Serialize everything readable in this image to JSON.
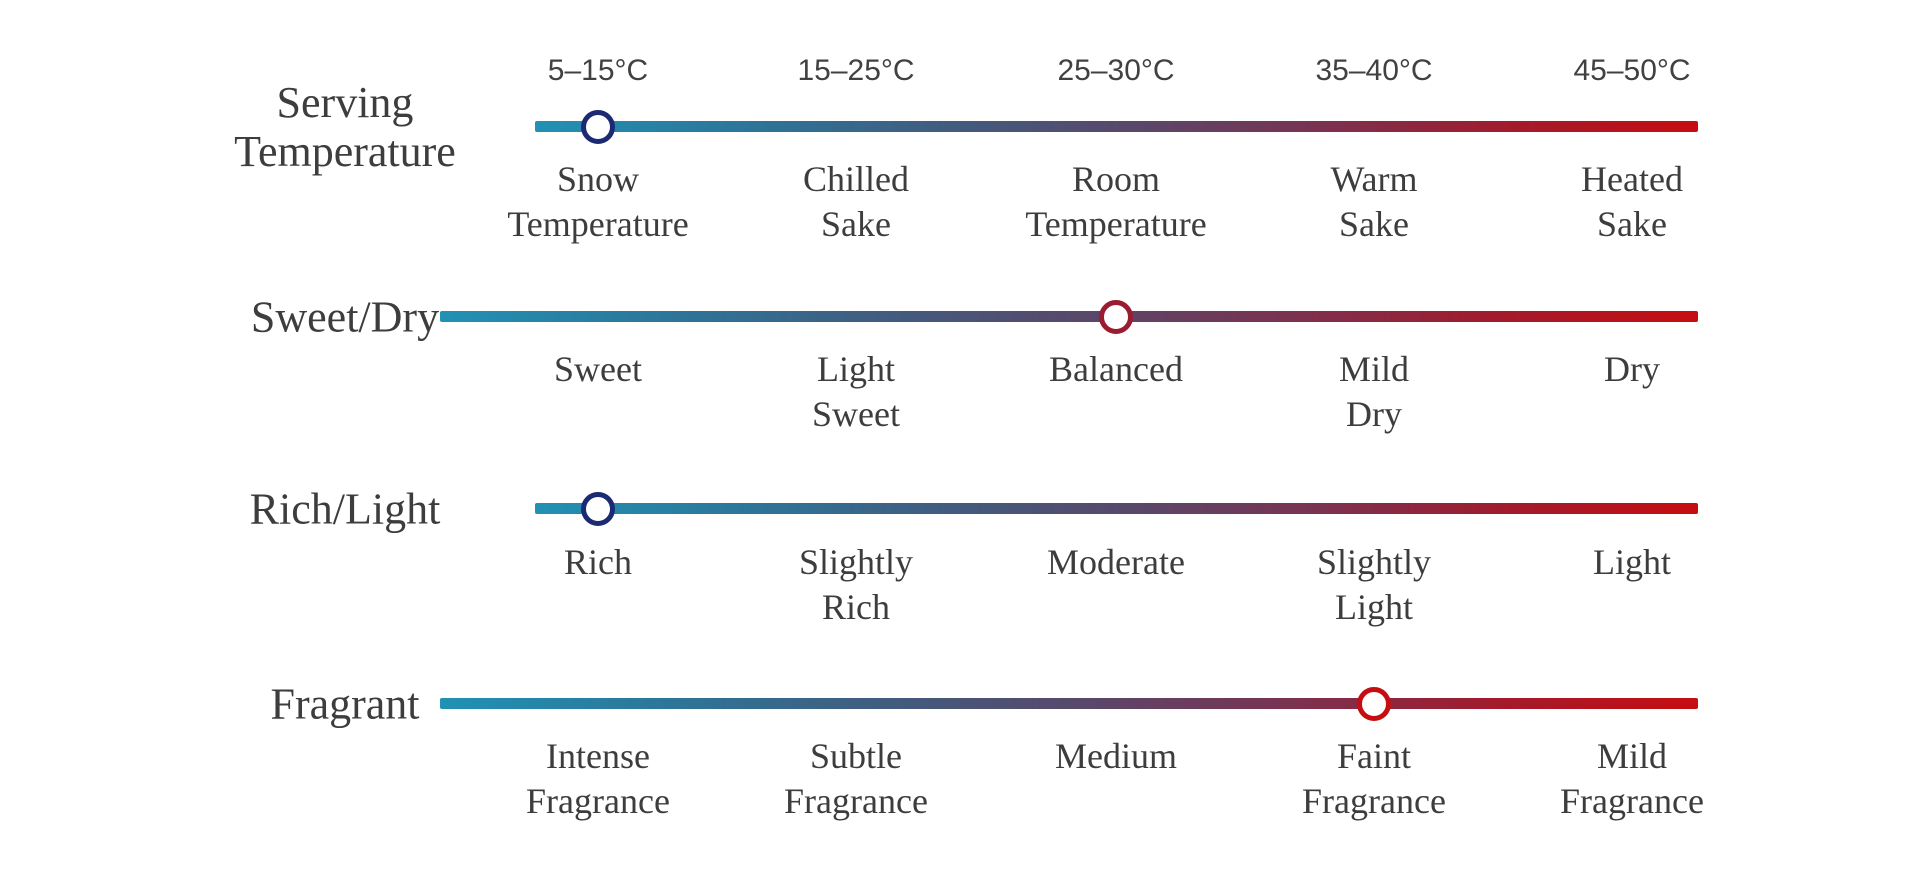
{
  "colors": {
    "gradient_start": "#2191b4",
    "gradient_mid": "#5a4769",
    "gradient_end": "#c60d11",
    "marker_navy": "#1b2a72",
    "marker_crimson": "#9b1b30",
    "marker_red": "#c40e12",
    "text": "#3d3d3d",
    "background": "#ffffff"
  },
  "chart_data": {
    "type": "slider",
    "orientation": "horizontal",
    "description": "Four horizontal blue-to-red gradient scales with a circular marker showing the selected level on each scale",
    "gradient": [
      "#2191b4",
      "#5a4769",
      "#c60d11"
    ],
    "legend_position": "left",
    "grid": false,
    "scales": [
      {
        "label": "Serving\nTemperature",
        "ticks_above": [
          "5–15°C",
          "15–25°C",
          "25–30°C",
          "35–40°C",
          "45–50°C"
        ],
        "categories": [
          "Snow\nTemperature",
          "Chilled\nSake",
          "Room\nTemperature",
          "Warm\nSake",
          "Heated\nSake"
        ],
        "selected_index": 0,
        "selected": "Snow Temperature",
        "selected_temperature": "5–15°C",
        "marker_color": "#1b2a72"
      },
      {
        "label": "Sweet/Dry",
        "categories": [
          "Sweet",
          "Light\nSweet",
          "Balanced",
          "Mild\nDry",
          "Dry"
        ],
        "selected_index": 2,
        "selected": "Balanced",
        "marker_color": "#9b1b30"
      },
      {
        "label": "Rich/Light",
        "categories": [
          "Rich",
          "Slightly\nRich",
          "Moderate",
          "Slightly\nLight",
          "Light"
        ],
        "selected_index": 0,
        "selected": "Rich",
        "marker_color": "#1b2a72"
      },
      {
        "label": "Fragrant",
        "categories": [
          "Intense\nFragrance",
          "Subtle\nFragrance",
          "Medium",
          "Faint\nFragrance",
          "Mild\nFragrance"
        ],
        "selected_index": 3,
        "selected": "Faint Fragrance",
        "marker_color": "#c40e12"
      }
    ]
  }
}
